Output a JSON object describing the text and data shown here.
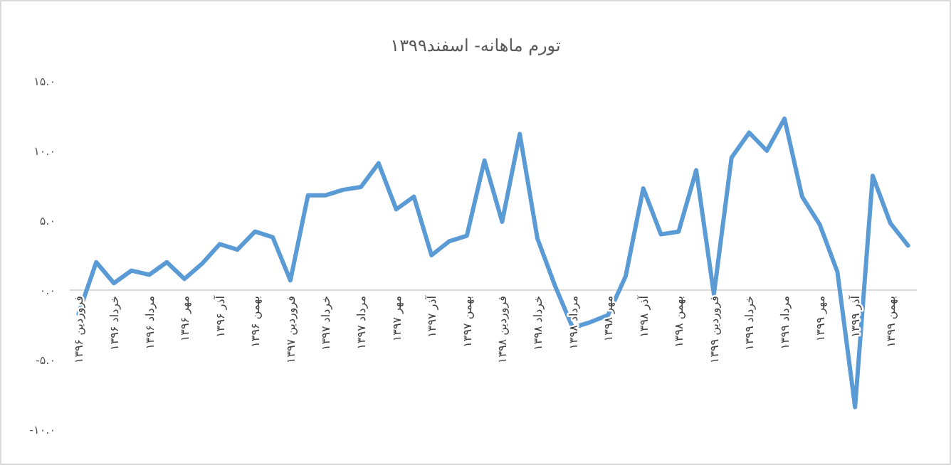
{
  "chart_data": {
    "type": "line",
    "title": "تورم ماهانه- اسفند۱۳۹۹",
    "categories": [
      "فروردین ۱۳۹۶",
      null,
      "خرداد ۱۳۹۶",
      null,
      "مرداد ۱۳۹۶",
      null,
      "مهر ۱۳۹۶",
      null,
      "آذر ۱۳۹۶",
      null,
      "بهمن ۱۳۹۶",
      null,
      "فروردین ۱۳۹۷",
      null,
      "خرداد ۱۳۹۷",
      null,
      "مرداد ۱۳۹۷",
      null,
      "مهر ۱۳۹۷",
      null,
      "آذر ۱۳۹۷",
      null,
      "بهمن ۱۳۹۷",
      null,
      "فروردین ۱۳۹۸",
      null,
      "خرداد ۱۳۹۸",
      null,
      "مرداد ۱۳۹۸",
      null,
      "مهر ۱۳۹۸",
      null,
      "آذر ۱۳۹۸",
      null,
      "بهمن ۱۳۹۸",
      null,
      "فروردین ۱۳۹۹",
      null,
      "خرداد ۱۳۹۹",
      null,
      "مرداد ۱۳۹۹",
      null,
      "مهر ۱۳۹۹",
      null,
      "آذر ۱۳۹۹",
      null,
      "بهمن ۱۳۹۹",
      null
    ],
    "values": [
      -1.7,
      2.0,
      0.5,
      1.4,
      1.1,
      2.0,
      0.8,
      1.9,
      3.3,
      2.9,
      4.2,
      3.8,
      0.7,
      6.8,
      6.8,
      7.2,
      7.4,
      9.1,
      5.8,
      6.7,
      2.5,
      3.5,
      3.9,
      9.3,
      4.9,
      11.2,
      3.7,
      0.3,
      -2.7,
      -2.3,
      -1.8,
      1.0,
      7.3,
      4.0,
      4.2,
      8.6,
      -0.3,
      9.5,
      11.3,
      10.0,
      12.3,
      6.7,
      4.7,
      1.3,
      -8.4,
      8.2,
      4.8,
      3.2
    ],
    "color": "#5b9bd5",
    "ylim": [
      -10,
      15
    ],
    "yticks": [
      {
        "value": -10,
        "label": "-۱۰.۰"
      },
      {
        "value": -5,
        "label": "-۵.۰"
      },
      {
        "value": 0,
        "label": "۰.۰"
      },
      {
        "value": 5,
        "label": "۵.۰"
      },
      {
        "value": 10,
        "label": "۱۰.۰"
      },
      {
        "value": 15,
        "label": "۱۵.۰"
      }
    ]
  }
}
